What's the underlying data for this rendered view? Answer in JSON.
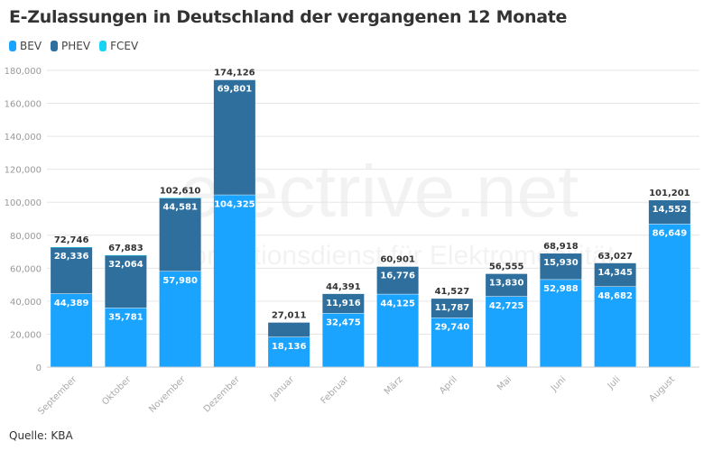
{
  "title": "E-Zulassungen in Deutschland der vergangenen 12 Monate",
  "source": "Quelle: KBA",
  "watermark": {
    "logo": "electrive.net",
    "tagline": "Informationsdienst für Elektromobilität"
  },
  "chart_data": {
    "type": "bar",
    "stacked": true,
    "title": "E-Zulassungen in Deutschland der vergangenen 12 Monate",
    "categories": [
      "September",
      "Oktober",
      "November",
      "Dezember",
      "Januar",
      "Februar",
      "März",
      "April",
      "Mai",
      "Juni",
      "Juli",
      "August"
    ],
    "series": [
      {
        "name": "BEV",
        "color": "#1aa3ff",
        "values": [
          44389,
          35781,
          57980,
          104325,
          18136,
          32475,
          44125,
          29740,
          42725,
          52988,
          48682,
          86649
        ]
      },
      {
        "name": "PHEV",
        "color": "#2e6f9e",
        "values": [
          28336,
          32064,
          44581,
          69801,
          8875,
          11916,
          16776,
          11787,
          13830,
          15930,
          14345,
          14552
        ]
      },
      {
        "name": "FCEV",
        "color": "#19d3f3",
        "values": [
          21,
          38,
          49,
          0,
          0,
          0,
          0,
          0,
          0,
          0,
          0,
          0
        ]
      }
    ],
    "totals": [
      72746,
      67883,
      102610,
      174126,
      27011,
      44391,
      60901,
      41527,
      56555,
      68918,
      63027,
      101201
    ],
    "ylim": [
      0,
      180000
    ],
    "yticks": [
      0,
      20000,
      40000,
      60000,
      80000,
      100000,
      120000,
      140000,
      160000,
      180000
    ],
    "grid": true,
    "legend": "top-left"
  }
}
